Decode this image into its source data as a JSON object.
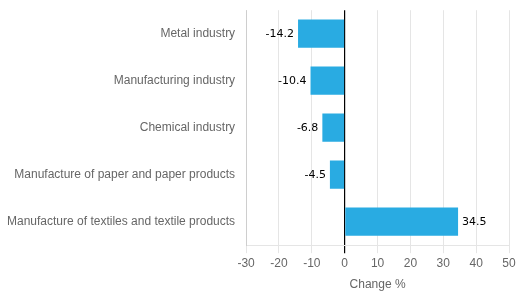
{
  "chart_data": {
    "type": "bar",
    "orientation": "horizontal",
    "categories": [
      "Metal industry",
      "Manufacturing industry",
      "Chemical industry",
      "Manufacture of paper and paper products",
      "Manufacture of textiles and textile products"
    ],
    "values": [
      -14.2,
      -10.4,
      -6.8,
      -4.5,
      34.5
    ],
    "color": "#29abe2",
    "xlabel": "Change %",
    "xlim": [
      -30,
      50
    ],
    "xticks": [
      -30,
      -20,
      -10,
      0,
      10,
      20,
      30,
      40,
      50
    ],
    "grid": true,
    "data_labels": true
  }
}
